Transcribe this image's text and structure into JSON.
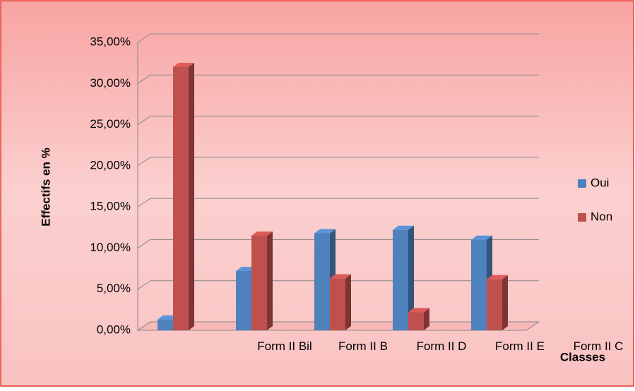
{
  "chart_data": {
    "type": "bar3d",
    "y_label": "Effectifs en %",
    "x_label": "Classes",
    "categories": [
      null,
      "Form II Bil",
      "Form II B",
      "Form II D",
      "Form II E",
      "Form II C"
    ],
    "series": [
      {
        "name": "Oui",
        "color": "#4f81bd",
        "values": [
          1.3,
          7.2,
          11.8,
          12.2,
          11.0,
          null
        ]
      },
      {
        "name": "Non",
        "color": "#c0504d",
        "values": [
          32.0,
          11.5,
          6.3,
          2.2,
          6.2,
          null
        ]
      }
    ],
    "ylim": [
      0,
      35
    ],
    "yticks": [
      {
        "value": 0,
        "label": "0,00%"
      },
      {
        "value": 5,
        "label": "5,00%"
      },
      {
        "value": 10,
        "label": "10,00%"
      },
      {
        "value": 15,
        "label": "15,00%"
      },
      {
        "value": 20,
        "label": "20,00%"
      },
      {
        "value": 25,
        "label": "25,00%"
      },
      {
        "value": 30,
        "label": "30,00%"
      },
      {
        "value": 35,
        "label": "35,00%"
      }
    ],
    "grid": true,
    "legend": "right"
  }
}
